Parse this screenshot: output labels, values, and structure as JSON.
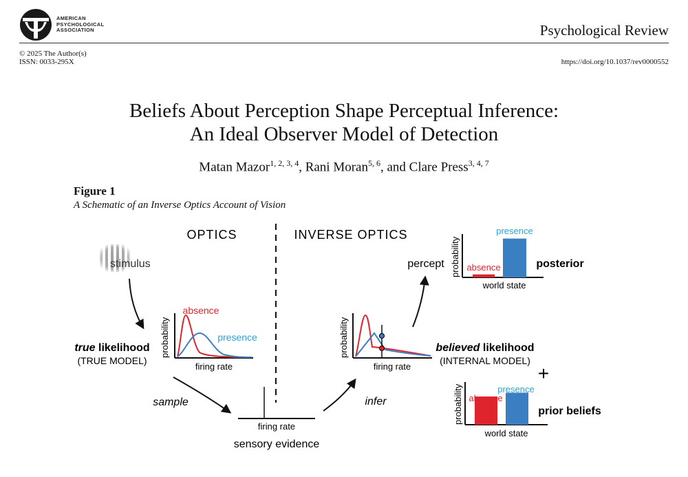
{
  "header": {
    "publisher": [
      "AMERICAN",
      "PSYCHOLOGICAL",
      "ASSOCIATION"
    ],
    "journal": "Psychological Review",
    "copyright": "© 2025 The Author(s)",
    "issn": "ISSN: 0033-295X",
    "doi": "https://doi.org/10.1037/rev0000552"
  },
  "paper": {
    "title_line1": "Beliefs About Perception Shape Perceptual Inference:",
    "title_line2": "An Ideal Observer Model of Detection",
    "authors": [
      {
        "name": "Matan Mazor",
        "affil": "1, 2, 3, 4",
        "sep": ", "
      },
      {
        "name": "Rani Moran",
        "affil": "5, 6",
        "sep": ", and "
      },
      {
        "name": "Clare Press",
        "affil": "3, 4, 7",
        "sep": ""
      }
    ]
  },
  "figure": {
    "label": "Figure 1",
    "caption": "A Schematic of an Inverse Optics Account of Vision",
    "optics_heading": "OPTICS",
    "inverse_heading": "INVERSE OPTICS",
    "stimulus": "stimulus",
    "true_likelihood_em": "true",
    "true_likelihood_rest": " likelihood",
    "true_model": "(TRUE MODEL)",
    "sample": "sample",
    "infer": "infer",
    "firing_rate": "firing rate",
    "probability": "probability",
    "absence": "absence",
    "presence": "presence",
    "sensory_evidence": "sensory evidence",
    "percept": "percept",
    "posterior": "posterior",
    "world_state": "world state",
    "believed_em": "believed",
    "believed_rest": " likelihood",
    "internal_model": "(INTERNAL MODEL)",
    "plus": "+",
    "prior_beliefs": "prior beliefs",
    "posterior_values": {
      "absence": 0.07,
      "presence": 0.91
    },
    "prior_values": {
      "absence": 0.66,
      "presence": 0.75
    }
  },
  "colors": {
    "absence": "#e0242d",
    "presence": "#3a7fc1",
    "presence_label": "#2aa3d8"
  }
}
